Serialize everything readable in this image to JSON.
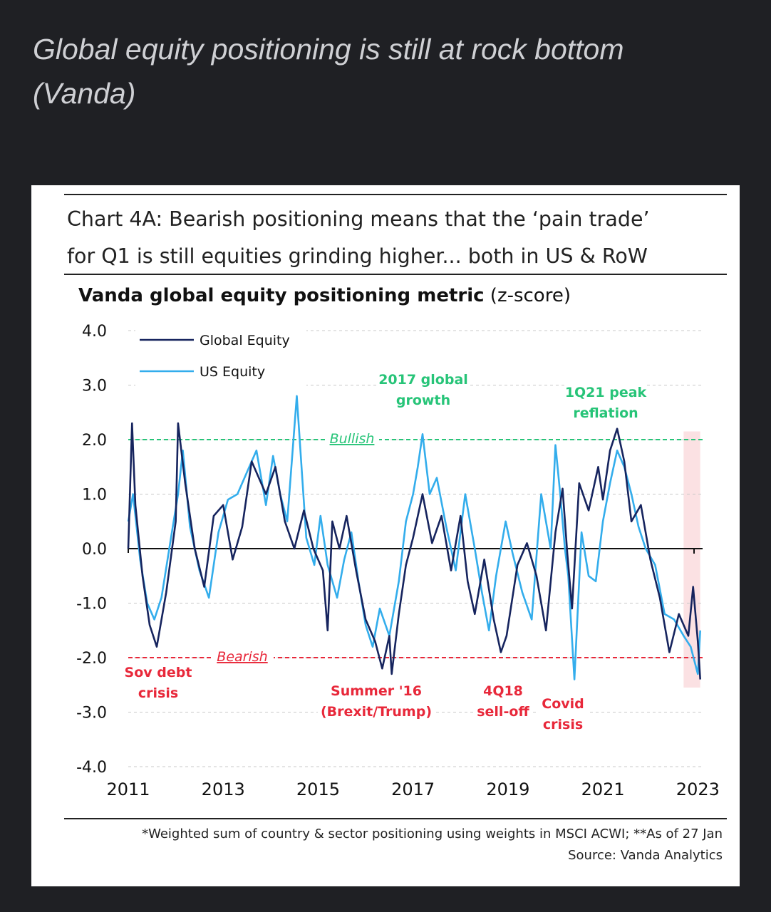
{
  "post": {
    "title_line1": "Global equity positioning is still at rock bottom",
    "title_line2": "(Vanda)"
  },
  "chart_heading": {
    "line1": "Chart 4A: Bearish positioning means that the ‘pain trade’",
    "line2": "for Q1 is still equities grinding higher... both in US & RoW"
  },
  "chart_data": {
    "type": "line",
    "title_bold": "Vanda global equity positioning metric",
    "title_unit": "(z-score)",
    "ylim": [
      -4.0,
      4.0
    ],
    "yticks": [
      "4.0",
      "3.0",
      "2.0",
      "1.0",
      "0.0",
      "-1.0",
      "-2.0",
      "-3.0",
      "-4.0"
    ],
    "xlim": [
      2011,
      2023.1
    ],
    "xticks": [
      "2011",
      "2013",
      "2015",
      "2017",
      "2019",
      "2021",
      "2023"
    ],
    "legend": [
      "Global Equity",
      "US Equity"
    ],
    "colors": {
      "global": "#16245e",
      "us": "#33adec",
      "bullish": "#27c478",
      "bearish": "#e8283a",
      "shade": "#fbe1e3"
    },
    "thresholds": [
      {
        "label": "Bullish",
        "value": 2.0
      },
      {
        "label": "Bearish",
        "value": -2.0
      }
    ],
    "shaded_period": [
      2022.7,
      2023.05
    ],
    "annotations": {
      "sov_debt": [
        "Sov debt",
        "crisis"
      ],
      "summer16": [
        "Summer '16",
        "(Brexit/Trump)"
      ],
      "q418": [
        "4Q18",
        "sell-off"
      ],
      "covid": [
        "Covid",
        "crisis"
      ],
      "growth2017": [
        "2017 global",
        "growth"
      ],
      "peak1q21": [
        "1Q21 peak",
        "reflation"
      ]
    },
    "series": [
      {
        "name": "Global Equity",
        "x": [
          2011.0,
          2011.08,
          2011.15,
          2011.3,
          2011.45,
          2011.6,
          2011.8,
          2012.0,
          2012.05,
          2012.2,
          2012.4,
          2012.6,
          2012.8,
          2013.0,
          2013.2,
          2013.4,
          2013.6,
          2013.9,
          2014.1,
          2014.3,
          2014.5,
          2014.7,
          2014.9,
          2015.1,
          2015.2,
          2015.3,
          2015.45,
          2015.6,
          2015.8,
          2016.0,
          2016.2,
          2016.35,
          2016.5,
          2016.55,
          2016.7,
          2016.85,
          2017.0,
          2017.2,
          2017.4,
          2017.6,
          2017.8,
          2018.0,
          2018.15,
          2018.3,
          2018.5,
          2018.7,
          2018.85,
          2018.97,
          2019.2,
          2019.4,
          2019.6,
          2019.8,
          2020.0,
          2020.15,
          2020.25,
          2020.35,
          2020.5,
          2020.7,
          2020.9,
          2021.0,
          2021.15,
          2021.3,
          2021.45,
          2021.6,
          2021.8,
          2022.0,
          2022.2,
          2022.4,
          2022.6,
          2022.8,
          2022.9,
          2023.0,
          2023.05
        ],
        "values": [
          0.0,
          2.3,
          0.8,
          -0.5,
          -1.4,
          -1.8,
          -0.8,
          0.5,
          2.3,
          1.2,
          0.0,
          -0.7,
          0.6,
          0.8,
          -0.2,
          0.4,
          1.6,
          1.0,
          1.5,
          0.5,
          0.0,
          0.7,
          0.0,
          -0.4,
          -1.5,
          0.5,
          0.0,
          0.6,
          -0.4,
          -1.3,
          -1.7,
          -2.2,
          -1.6,
          -2.3,
          -1.2,
          -0.3,
          0.2,
          1.0,
          0.1,
          0.6,
          -0.4,
          0.6,
          -0.6,
          -1.2,
          -0.2,
          -1.3,
          -1.9,
          -1.6,
          -0.3,
          0.1,
          -0.5,
          -1.5,
          0.3,
          1.1,
          -0.1,
          -1.1,
          1.2,
          0.7,
          1.5,
          0.9,
          1.8,
          2.2,
          1.6,
          0.5,
          0.8,
          -0.2,
          -0.9,
          -1.9,
          -1.2,
          -1.6,
          -0.7,
          -1.7,
          -2.4
        ]
      },
      {
        "name": "US Equity",
        "x": [
          2011.0,
          2011.1,
          2011.25,
          2011.4,
          2011.55,
          2011.7,
          2011.9,
          2012.05,
          2012.15,
          2012.3,
          2012.5,
          2012.7,
          2012.9,
          2013.1,
          2013.3,
          2013.5,
          2013.7,
          2013.9,
          2014.05,
          2014.2,
          2014.35,
          2014.55,
          2014.75,
          2014.92,
          2015.05,
          2015.2,
          2015.4,
          2015.55,
          2015.7,
          2015.85,
          2016.0,
          2016.15,
          2016.3,
          2016.5,
          2016.7,
          2016.85,
          2017.0,
          2017.1,
          2017.2,
          2017.35,
          2017.5,
          2017.7,
          2017.9,
          2018.1,
          2018.3,
          2018.45,
          2018.6,
          2018.75,
          2018.95,
          2019.1,
          2019.3,
          2019.5,
          2019.7,
          2019.9,
          2020.0,
          2020.1,
          2020.2,
          2020.27,
          2020.4,
          2020.55,
          2020.7,
          2020.85,
          2021.0,
          2021.15,
          2021.3,
          2021.45,
          2021.6,
          2021.75,
          2021.9,
          2022.1,
          2022.3,
          2022.5,
          2022.7,
          2022.85,
          2023.0,
          2023.05
        ],
        "values": [
          0.5,
          1.0,
          -0.2,
          -1.0,
          -1.3,
          -0.9,
          0.2,
          1.0,
          1.8,
          0.4,
          -0.4,
          -0.9,
          0.3,
          0.9,
          1.0,
          1.4,
          1.8,
          0.8,
          1.7,
          1.0,
          0.5,
          2.8,
          0.2,
          -0.3,
          0.6,
          -0.3,
          -0.9,
          -0.2,
          0.3,
          -0.6,
          -1.4,
          -1.8,
          -1.1,
          -1.6,
          -0.6,
          0.5,
          1.0,
          1.5,
          2.1,
          1.0,
          1.3,
          0.4,
          -0.4,
          1.0,
          0.0,
          -0.8,
          -1.5,
          -0.5,
          0.5,
          -0.1,
          -0.8,
          -1.3,
          1.0,
          0.0,
          1.9,
          1.0,
          0.0,
          -0.5,
          -2.4,
          0.3,
          -0.5,
          -0.6,
          0.5,
          1.2,
          1.8,
          1.5,
          1.0,
          0.4,
          0.0,
          -0.3,
          -1.2,
          -1.3,
          -1.6,
          -1.8,
          -2.3,
          -1.5
        ]
      }
    ]
  },
  "footnote": {
    "line1": "*Weighted sum of country & sector positioning using weights in MSCI ACWI; **As of 27 Jan",
    "line2": "Source: Vanda Analytics"
  }
}
